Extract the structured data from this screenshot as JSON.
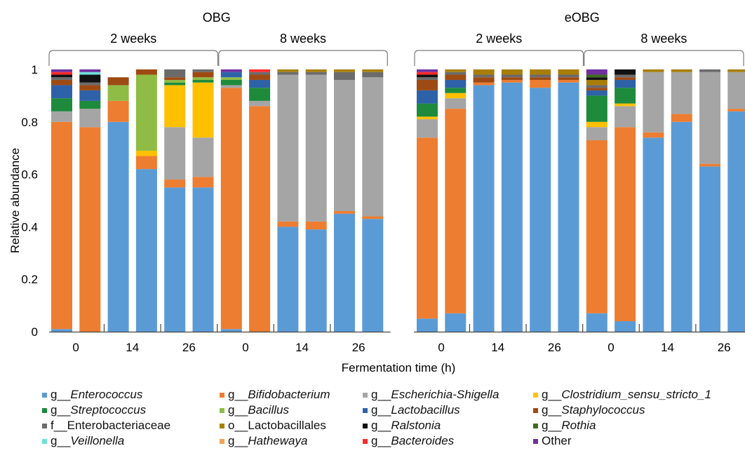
{
  "chart_data": {
    "type": "bar",
    "stacked": true,
    "ylabel": "Relative abundance",
    "xlabel": "Fermentation time (h)",
    "ylim": [
      0,
      1
    ],
    "yticks": [
      "0",
      "0.2",
      "0.4",
      "0.6",
      "0.8",
      "1"
    ],
    "groups": [
      {
        "label": "OBG",
        "subgroups": [
          {
            "label": "2 weeks",
            "time_labels": [
              "0",
              "14",
              "26"
            ]
          },
          {
            "label": "8 weeks",
            "time_labels": [
              "0",
              "14",
              "26"
            ]
          }
        ]
      },
      {
        "label": "eOBG",
        "subgroups": [
          {
            "label": "2 weeks",
            "time_labels": [
              "0",
              "14",
              "26"
            ]
          },
          {
            "label": "8 weeks",
            "time_labels": [
              "0",
              "14",
              "26"
            ]
          }
        ]
      }
    ],
    "taxa": [
      {
        "prefix": "g__",
        "name": "Enterococcus",
        "italic": true,
        "color": "#5b9bd5"
      },
      {
        "prefix": "g__",
        "name": "Bifidobacterium",
        "italic": true,
        "color": "#ed7d31"
      },
      {
        "prefix": "g__",
        "name": "Escherichia-Shigella",
        "italic": true,
        "color": "#a5a5a5"
      },
      {
        "prefix": "g__",
        "name": "Clostridium_sensu_stricto_1",
        "italic": true,
        "color": "#ffc000"
      },
      {
        "prefix": "g__",
        "name": "Streptococcus",
        "italic": true,
        "color": "#1e8a3c"
      },
      {
        "prefix": "g__",
        "name": "Bacillus",
        "italic": true,
        "color": "#8fbc45"
      },
      {
        "prefix": "g__",
        "name": "Lactobacillus",
        "italic": true,
        "color": "#2e62a8"
      },
      {
        "prefix": "g__",
        "name": "Staphylococcus",
        "italic": true,
        "color": "#9e4a13"
      },
      {
        "prefix": "f__",
        "name": "Enterobacteriaceae",
        "italic": false,
        "color": "#6b6b6b"
      },
      {
        "prefix": "o__",
        "name": "Lactobacillales",
        "italic": false,
        "color": "#a87e08"
      },
      {
        "prefix": "g__",
        "name": "Ralstonia",
        "italic": true,
        "color": "#111111"
      },
      {
        "prefix": "g__",
        "name": "Rothia",
        "italic": true,
        "color": "#3f6b1f"
      },
      {
        "prefix": "g__",
        "name": "Veillonella",
        "italic": true,
        "color": "#6fe0d8"
      },
      {
        "prefix": "g__",
        "name": "Hathewaya",
        "italic": true,
        "color": "#f4a25a"
      },
      {
        "prefix": "g__",
        "name": "Bacteroides",
        "italic": true,
        "color": "#ff2a2a"
      },
      {
        "prefix": "",
        "name": "Other",
        "italic": false,
        "color": "#7030a0"
      }
    ],
    "samples": [
      {
        "values": [
          0.01,
          0.79,
          0.04,
          0,
          0.05,
          0,
          0.05,
          0.02,
          0.01,
          0,
          0.01,
          0,
          0,
          0,
          0.01,
          0.01
        ]
      },
      {
        "values": [
          0.0,
          0.78,
          0.07,
          0,
          0.03,
          0,
          0.04,
          0.02,
          0.01,
          0,
          0.03,
          0,
          0.01,
          0,
          0,
          0.01
        ]
      },
      {
        "values": [
          0.8,
          0.08,
          0,
          0,
          0,
          0.06,
          0,
          0.03,
          0,
          0,
          0,
          0,
          0,
          0,
          0,
          0
        ]
      },
      {
        "values": [
          0.62,
          0.05,
          0,
          0.02,
          0,
          0.29,
          0,
          0.02,
          0,
          0,
          0,
          0,
          0,
          0,
          0,
          0
        ]
      },
      {
        "values": [
          0.55,
          0.03,
          0.2,
          0.16,
          0.01,
          0.01,
          0,
          0.01,
          0.03,
          0,
          0,
          0,
          0,
          0,
          0,
          0
        ]
      },
      {
        "values": [
          0.55,
          0.04,
          0.15,
          0.21,
          0.01,
          0.01,
          0,
          0.02,
          0.01,
          0,
          0,
          0,
          0,
          0,
          0,
          0
        ]
      },
      {
        "values": [
          0.01,
          0.92,
          0.01,
          0,
          0.02,
          0.01,
          0.02,
          0,
          0,
          0,
          0,
          0,
          0,
          0,
          0,
          0.01
        ]
      },
      {
        "values": [
          0.0,
          0.86,
          0.02,
          0,
          0.05,
          0,
          0.03,
          0.02,
          0.01,
          0,
          0,
          0,
          0,
          0,
          0.01,
          0
        ]
      },
      {
        "values": [
          0.4,
          0.02,
          0.56,
          0,
          0,
          0,
          0,
          0,
          0.01,
          0.01,
          0,
          0,
          0,
          0,
          0,
          0
        ]
      },
      {
        "values": [
          0.39,
          0.03,
          0.56,
          0,
          0,
          0,
          0,
          0,
          0.01,
          0.01,
          0,
          0,
          0,
          0,
          0,
          0
        ]
      },
      {
        "values": [
          0.45,
          0.01,
          0.5,
          0,
          0,
          0,
          0,
          0,
          0.03,
          0.01,
          0,
          0,
          0,
          0,
          0,
          0
        ]
      },
      {
        "values": [
          0.43,
          0.01,
          0.53,
          0,
          0,
          0,
          0,
          0,
          0.02,
          0.01,
          0,
          0,
          0,
          0,
          0,
          0
        ]
      },
      {
        "values": [
          0.05,
          0.69,
          0.07,
          0.01,
          0.05,
          0,
          0.05,
          0.04,
          0.01,
          0,
          0.01,
          0,
          0,
          0,
          0.01,
          0.01
        ]
      },
      {
        "values": [
          0.07,
          0.78,
          0.04,
          0.02,
          0.02,
          0,
          0.03,
          0.02,
          0.01,
          0.01,
          0,
          0,
          0,
          0,
          0,
          0
        ]
      },
      {
        "values": [
          0.94,
          0.01,
          0,
          0,
          0,
          0,
          0,
          0.02,
          0.01,
          0.02,
          0,
          0,
          0,
          0,
          0,
          0
        ]
      },
      {
        "values": [
          0.95,
          0.01,
          0,
          0,
          0,
          0,
          0,
          0.01,
          0.01,
          0.02,
          0,
          0,
          0,
          0,
          0,
          0
        ]
      },
      {
        "values": [
          0.93,
          0.03,
          0,
          0,
          0,
          0,
          0,
          0.01,
          0.01,
          0.02,
          0,
          0,
          0,
          0,
          0,
          0
        ]
      },
      {
        "values": [
          0.95,
          0.01,
          0,
          0,
          0,
          0,
          0,
          0.01,
          0.01,
          0.02,
          0,
          0,
          0,
          0,
          0,
          0
        ]
      },
      {
        "values": [
          0.07,
          0.66,
          0.05,
          0.02,
          0.1,
          0,
          0.02,
          0.01,
          0.01,
          0.02,
          0.01,
          0.01,
          0,
          0,
          0,
          0.02
        ]
      },
      {
        "values": [
          0.04,
          0.74,
          0.08,
          0.01,
          0.06,
          0,
          0.03,
          0.01,
          0.01,
          0,
          0.02,
          0,
          0,
          0,
          0,
          0
        ]
      },
      {
        "values": [
          0.74,
          0.02,
          0.23,
          0,
          0,
          0,
          0,
          0,
          0,
          0.01,
          0,
          0,
          0,
          0,
          0,
          0
        ]
      },
      {
        "values": [
          0.8,
          0.03,
          0.16,
          0,
          0,
          0,
          0,
          0,
          0,
          0.01,
          0,
          0,
          0,
          0,
          0,
          0
        ]
      },
      {
        "values": [
          0.63,
          0.01,
          0.35,
          0,
          0,
          0,
          0,
          0,
          0.01,
          0,
          0,
          0,
          0,
          0,
          0,
          0
        ]
      },
      {
        "values": [
          0.84,
          0.01,
          0.14,
          0,
          0,
          0,
          0,
          0,
          0,
          0.01,
          0,
          0,
          0,
          0,
          0,
          0
        ]
      }
    ]
  }
}
